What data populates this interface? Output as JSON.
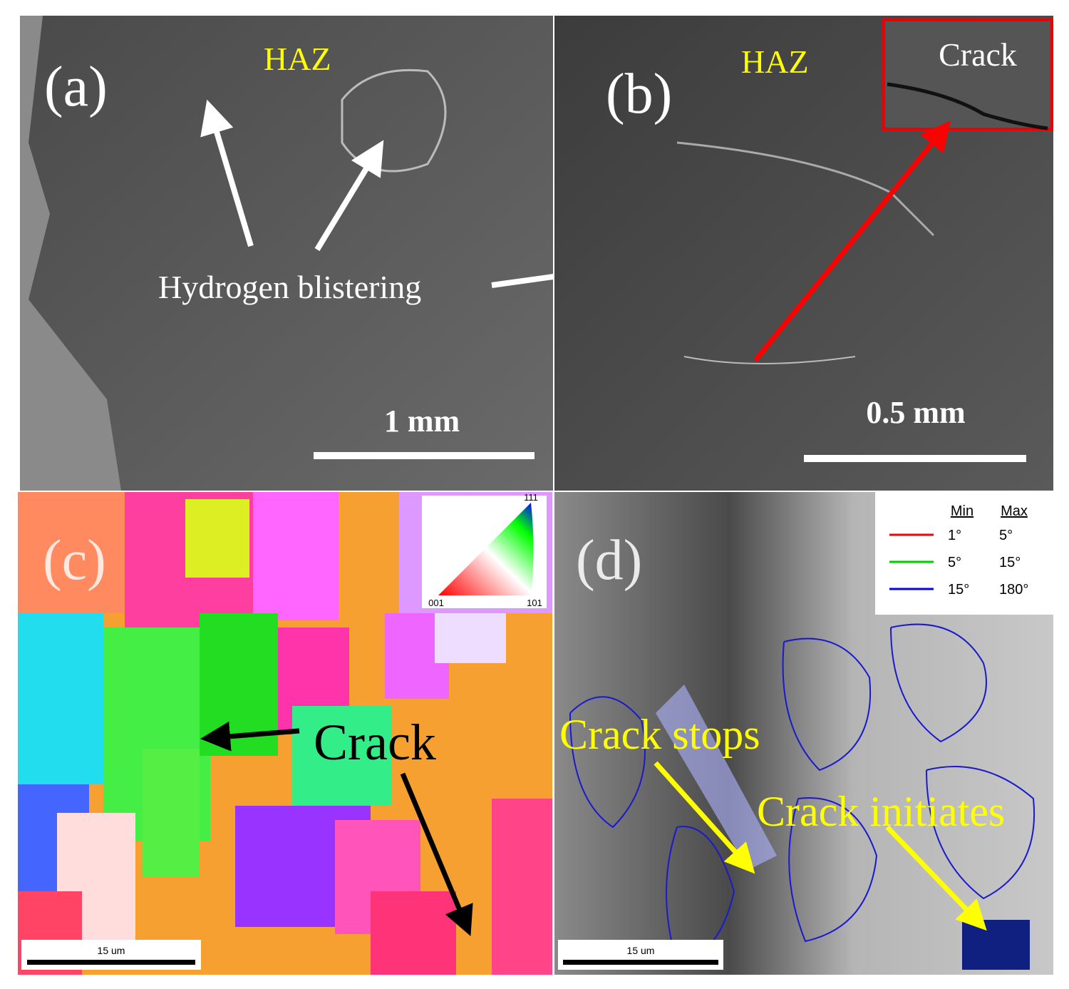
{
  "panels": [
    {
      "label": "(a)",
      "region": "HAZ",
      "annotation": "Hydrogen blistering",
      "scale_bar": "1 mm"
    },
    {
      "label": "(b)",
      "region": "HAZ",
      "inset_label": "Crack",
      "scale_bar": "0.5 mm"
    },
    {
      "label": "(c)",
      "annotation": "Crack",
      "scale_bar": "15 um",
      "ipf_key": [
        "111",
        "001",
        "101"
      ]
    },
    {
      "label": "(d)",
      "annotations": [
        "Crack stops",
        "Crack initiates"
      ],
      "scale_bar": "15 um",
      "legend": {
        "headers": [
          "Min",
          "Max"
        ],
        "rows": [
          [
            "1°",
            "5°"
          ],
          [
            "5°",
            "15°"
          ],
          [
            "15°",
            "180°"
          ]
        ]
      }
    }
  ]
}
